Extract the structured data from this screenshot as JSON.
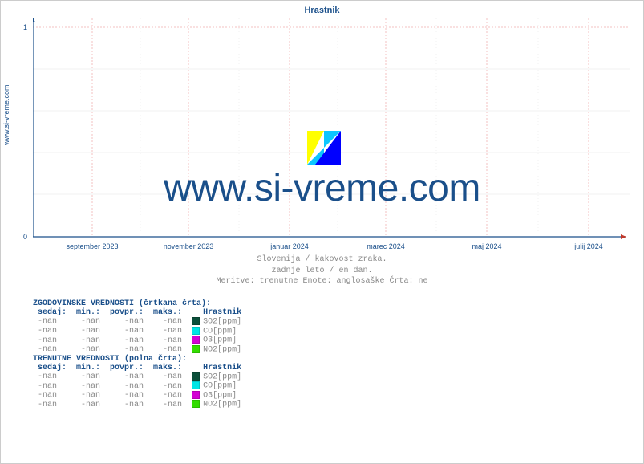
{
  "title": "Hrastnik",
  "source_label": "www.si-vreme.com",
  "watermark_text": "www.si-vreme.com",
  "watermark_logo_colors": [
    "#ffff00",
    "#00c3ff",
    "#0000ff"
  ],
  "chart": {
    "type": "line",
    "background_color": "#ffffff",
    "axis_color": "#1a4f8a",
    "grid_color_major": "#f3c0c0",
    "grid_color_minor": "#eaeaea",
    "ylim": [
      0,
      1.05
    ],
    "yticks": [
      0,
      1
    ],
    "xticks": [
      "september 2023",
      "november 2023",
      "januar 2024",
      "marec 2024",
      "maj 2024",
      "julij 2024"
    ],
    "xtick_positions_pct": [
      10,
      26,
      43,
      59,
      76,
      93
    ]
  },
  "subtitle_lines": [
    "Slovenija / kakovost zraka.",
    "zadnje leto / en dan.",
    "Meritve: trenutne  Enote: anglosaške  Črta: ne"
  ],
  "legend_sections": [
    {
      "header": "ZGODOVINSKE VREDNOSTI (črtkana črta):",
      "columns": [
        "sedaj:",
        "min.:",
        "povpr.:",
        "maks.:",
        "Hrastnik"
      ],
      "rows": [
        {
          "cells": [
            "-nan",
            "-nan",
            "-nan",
            "-nan"
          ],
          "series_label": "SO2[ppm]",
          "swatch": "#0b4f3a"
        },
        {
          "cells": [
            "-nan",
            "-nan",
            "-nan",
            "-nan"
          ],
          "series_label": "CO[ppm]",
          "swatch": "#00e5e5"
        },
        {
          "cells": [
            "-nan",
            "-nan",
            "-nan",
            "-nan"
          ],
          "series_label": "O3[ppm]",
          "swatch": "#d400d4"
        },
        {
          "cells": [
            "-nan",
            "-nan",
            "-nan",
            "-nan"
          ],
          "series_label": "NO2[ppm]",
          "swatch": "#33dd00"
        }
      ]
    },
    {
      "header": "TRENUTNE VREDNOSTI (polna črta):",
      "columns": [
        "sedaj:",
        "min.:",
        "povpr.:",
        "maks.:",
        "Hrastnik"
      ],
      "rows": [
        {
          "cells": [
            "-nan",
            "-nan",
            "-nan",
            "-nan"
          ],
          "series_label": "SO2[ppm]",
          "swatch": "#0b4f3a"
        },
        {
          "cells": [
            "-nan",
            "-nan",
            "-nan",
            "-nan"
          ],
          "series_label": "CO[ppm]",
          "swatch": "#00e5e5"
        },
        {
          "cells": [
            "-nan",
            "-nan",
            "-nan",
            "-nan"
          ],
          "series_label": "O3[ppm]",
          "swatch": "#d400d4"
        },
        {
          "cells": [
            "-nan",
            "-nan",
            "-nan",
            "-nan"
          ],
          "series_label": "NO2[ppm]",
          "swatch": "#33dd00"
        }
      ]
    }
  ]
}
